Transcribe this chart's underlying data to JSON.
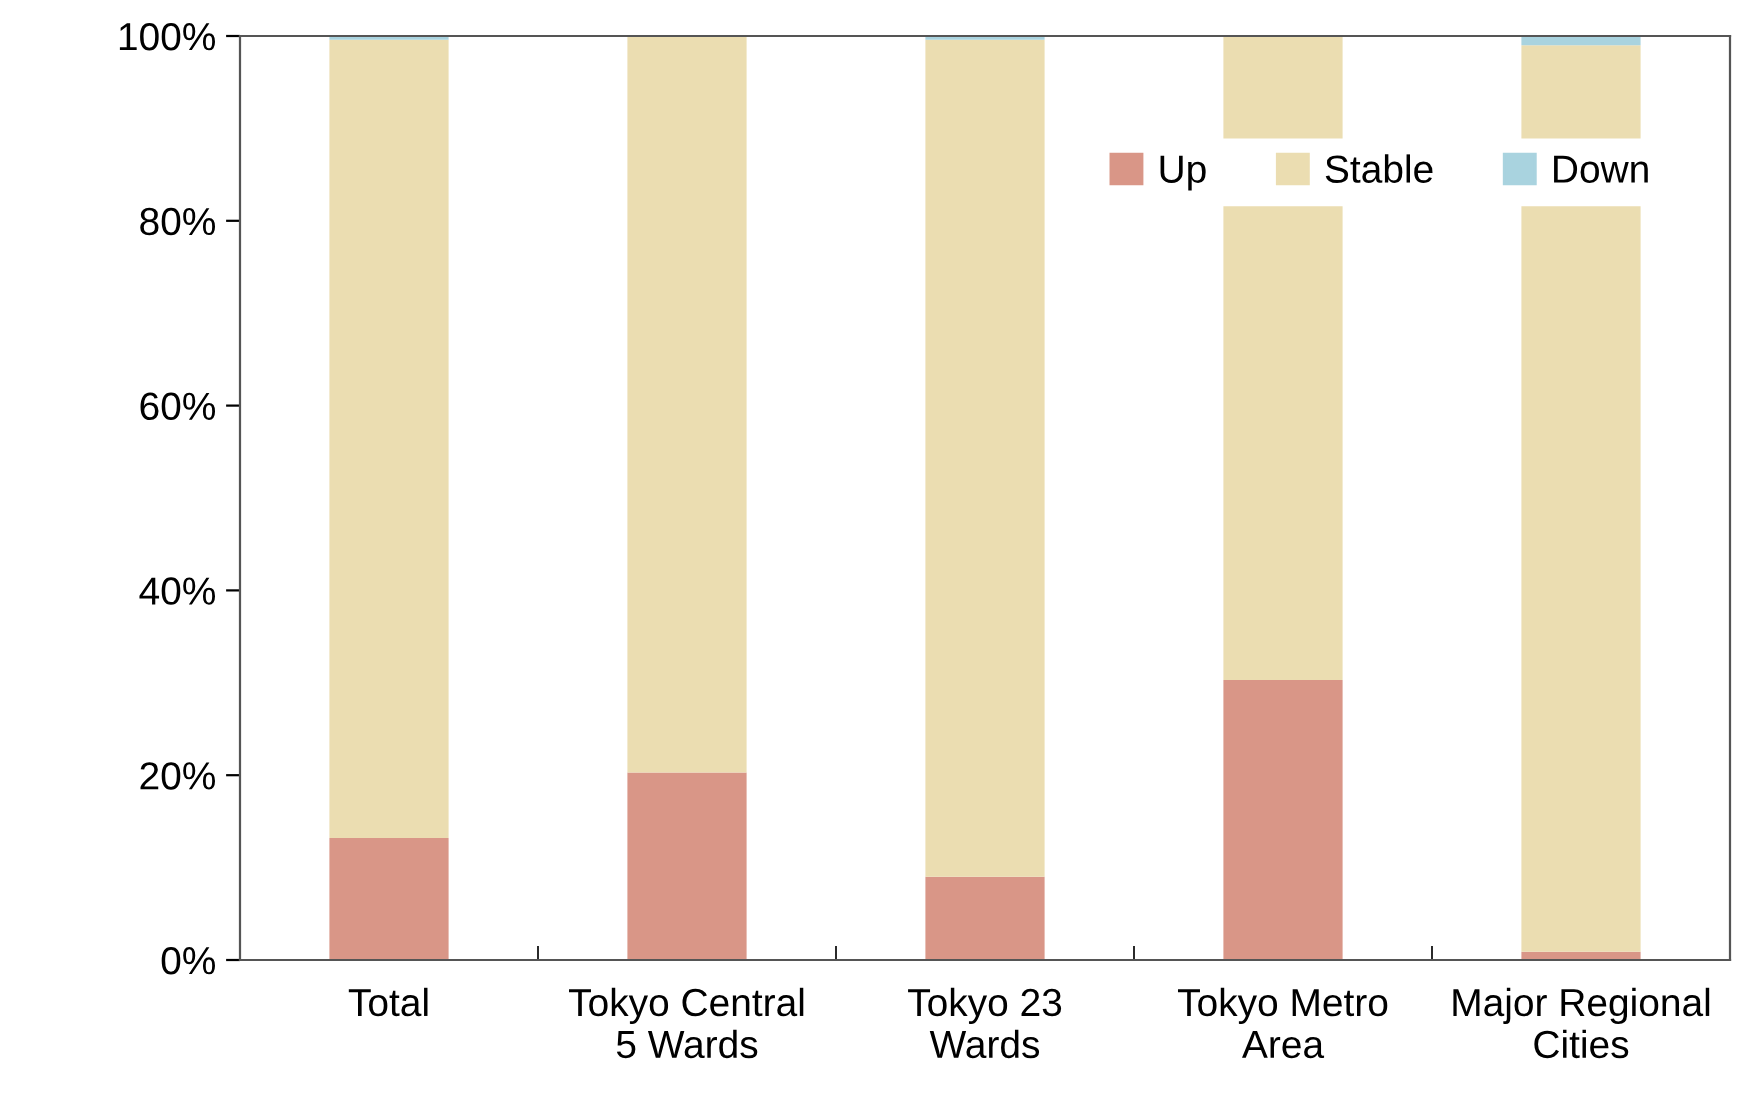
{
  "chart_data": {
    "type": "bar",
    "stacked": true,
    "categories": [
      "Total",
      "Tokyo Central\n5 Wards",
      "Tokyo 23\nWards",
      "Tokyo Metro\nArea",
      "Major Regional\nCities"
    ],
    "series": [
      {
        "name": "Up",
        "color": "#d99687",
        "values": [
          13.2,
          20.3,
          9.0,
          30.3,
          0.9
        ]
      },
      {
        "name": "Stable",
        "color": "#ebddb1",
        "values": [
          86.4,
          79.7,
          90.6,
          69.7,
          98.1
        ]
      },
      {
        "name": "Down",
        "color": "#a9d3df",
        "values": [
          0.4,
          0,
          0.4,
          0,
          1.0
        ]
      }
    ],
    "ylim": [
      0,
      100
    ],
    "yticks": [
      {
        "value": 0,
        "label": "0%"
      },
      {
        "value": 20,
        "label": "20%"
      },
      {
        "value": 40,
        "label": "40%"
      },
      {
        "value": 60,
        "label": "60%"
      },
      {
        "value": 80,
        "label": "80%"
      },
      {
        "value": 100,
        "label": "100%"
      }
    ],
    "grid": false,
    "legend": "top right"
  }
}
